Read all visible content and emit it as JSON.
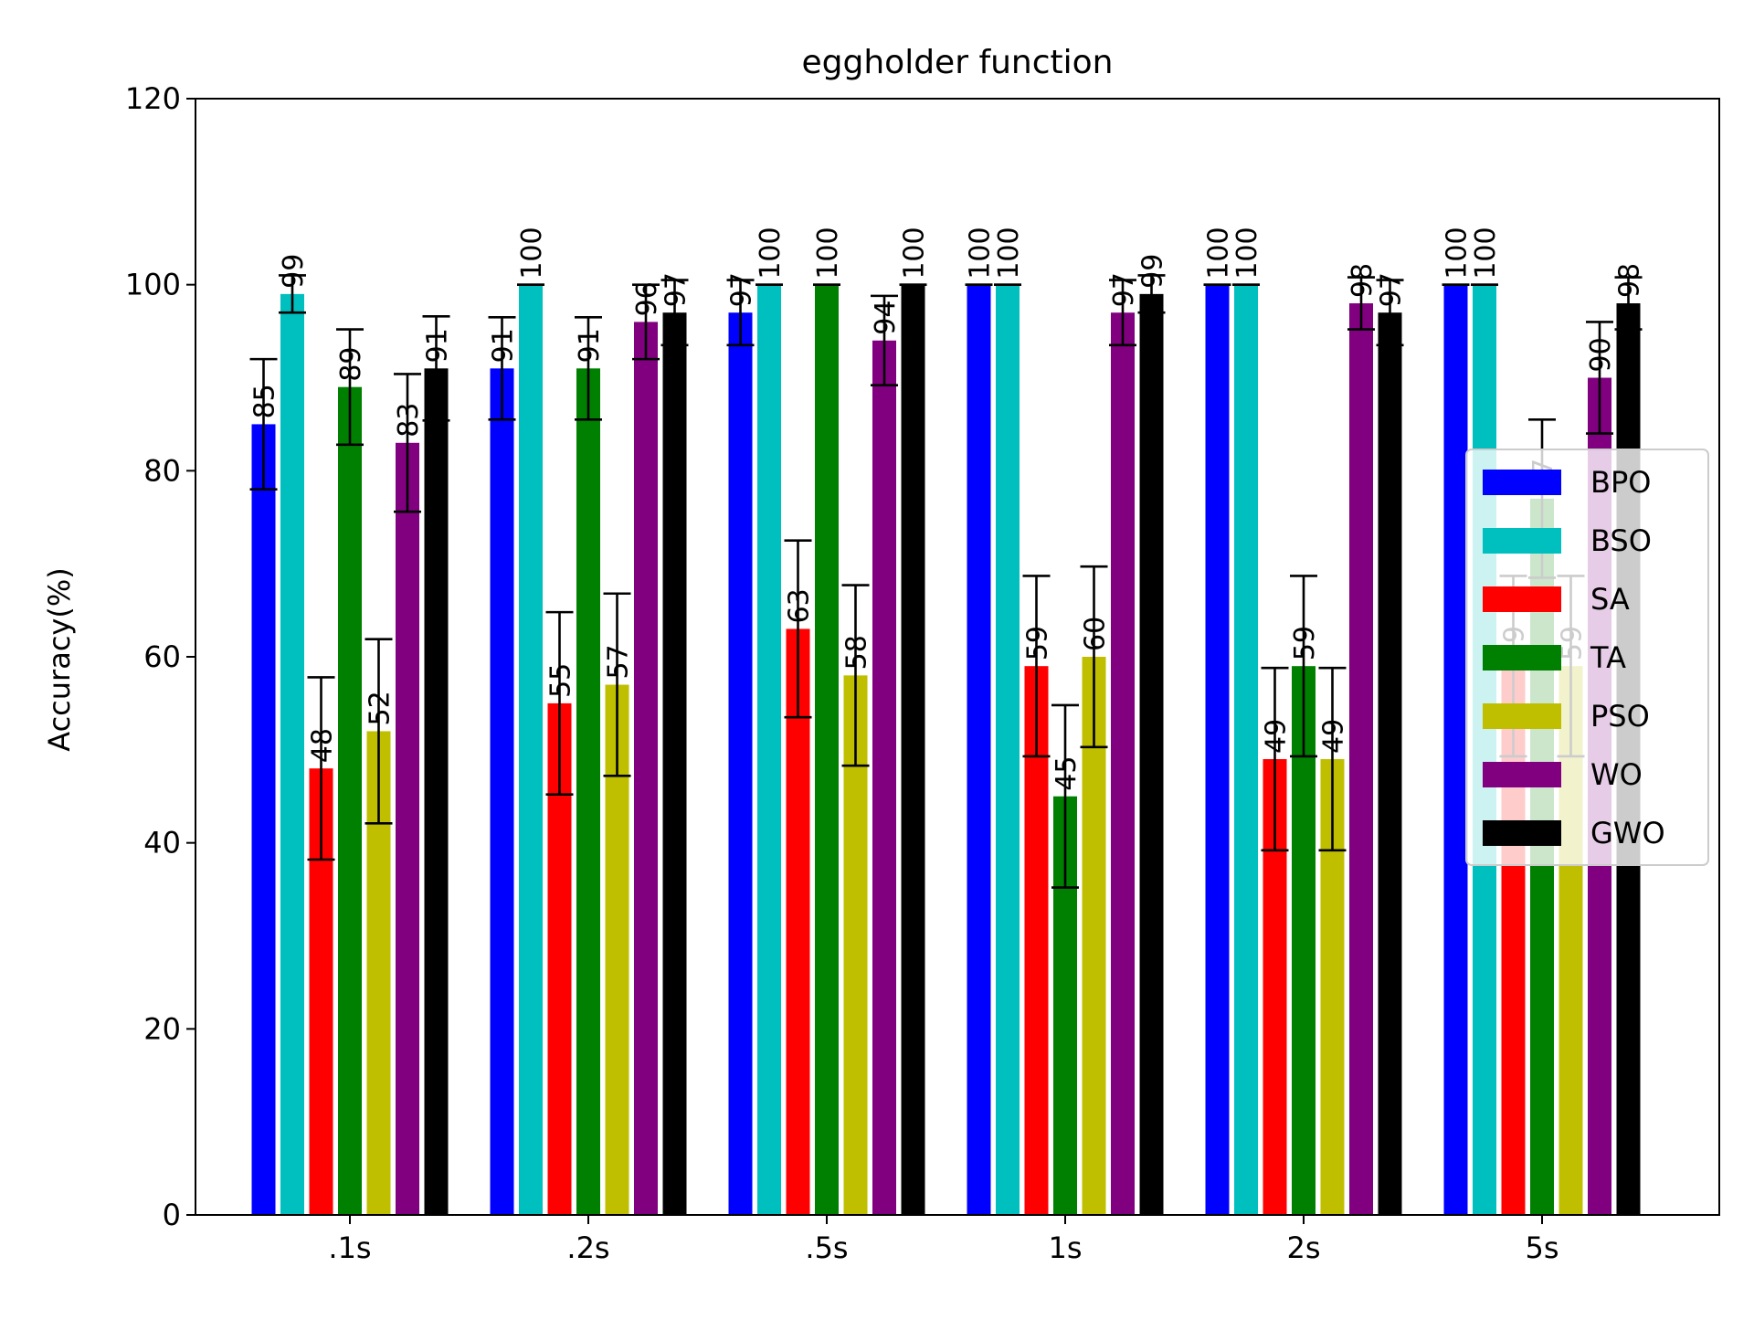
{
  "chart_data": {
    "type": "bar",
    "title": "eggholder function",
    "xlabel": "",
    "ylabel": "Accuracy(%)",
    "ylim": [
      0,
      120
    ],
    "yticks": [
      0,
      20,
      40,
      60,
      80,
      100,
      120
    ],
    "categories": [
      ".1s",
      ".2s",
      ".5s",
      "1s",
      "2s",
      "5s"
    ],
    "legend": {
      "placement": "center-right"
    },
    "series": [
      {
        "name": "BPO",
        "color": "#0000ff",
        "values": [
          85,
          91,
          97,
          100,
          100,
          100
        ],
        "errors": [
          7,
          5.5,
          3.5,
          0,
          0,
          0
        ]
      },
      {
        "name": "BSO",
        "color": "#00bfbf",
        "values": [
          99,
          100,
          100,
          100,
          100,
          100
        ],
        "errors": [
          2,
          0,
          0,
          0,
          0,
          0
        ]
      },
      {
        "name": "SA",
        "color": "#ff0000",
        "values": [
          48,
          55,
          63,
          59,
          49,
          59
        ],
        "errors": [
          9.8,
          9.8,
          9.5,
          9.7,
          9.8,
          9.7
        ]
      },
      {
        "name": "TA",
        "color": "#008000",
        "values": [
          89,
          91,
          100,
          45,
          59,
          77
        ],
        "errors": [
          6.2,
          5.5,
          0,
          9.8,
          9.7,
          8.5
        ]
      },
      {
        "name": "PSO",
        "color": "#bfbf00",
        "values": [
          52,
          57,
          58,
          60,
          49,
          59
        ],
        "errors": [
          9.9,
          9.8,
          9.7,
          9.7,
          9.8,
          9.7
        ]
      },
      {
        "name": "WO",
        "color": "#800080",
        "values": [
          83,
          96,
          94,
          97,
          98,
          90
        ],
        "errors": [
          7.4,
          4,
          4.8,
          3.5,
          2.8,
          6
        ]
      },
      {
        "name": "GWO",
        "color": "#000000",
        "values": [
          91,
          97,
          100,
          99,
          97,
          98
        ],
        "errors": [
          5.6,
          3.5,
          0,
          2,
          3.5,
          2.8
        ]
      }
    ]
  }
}
